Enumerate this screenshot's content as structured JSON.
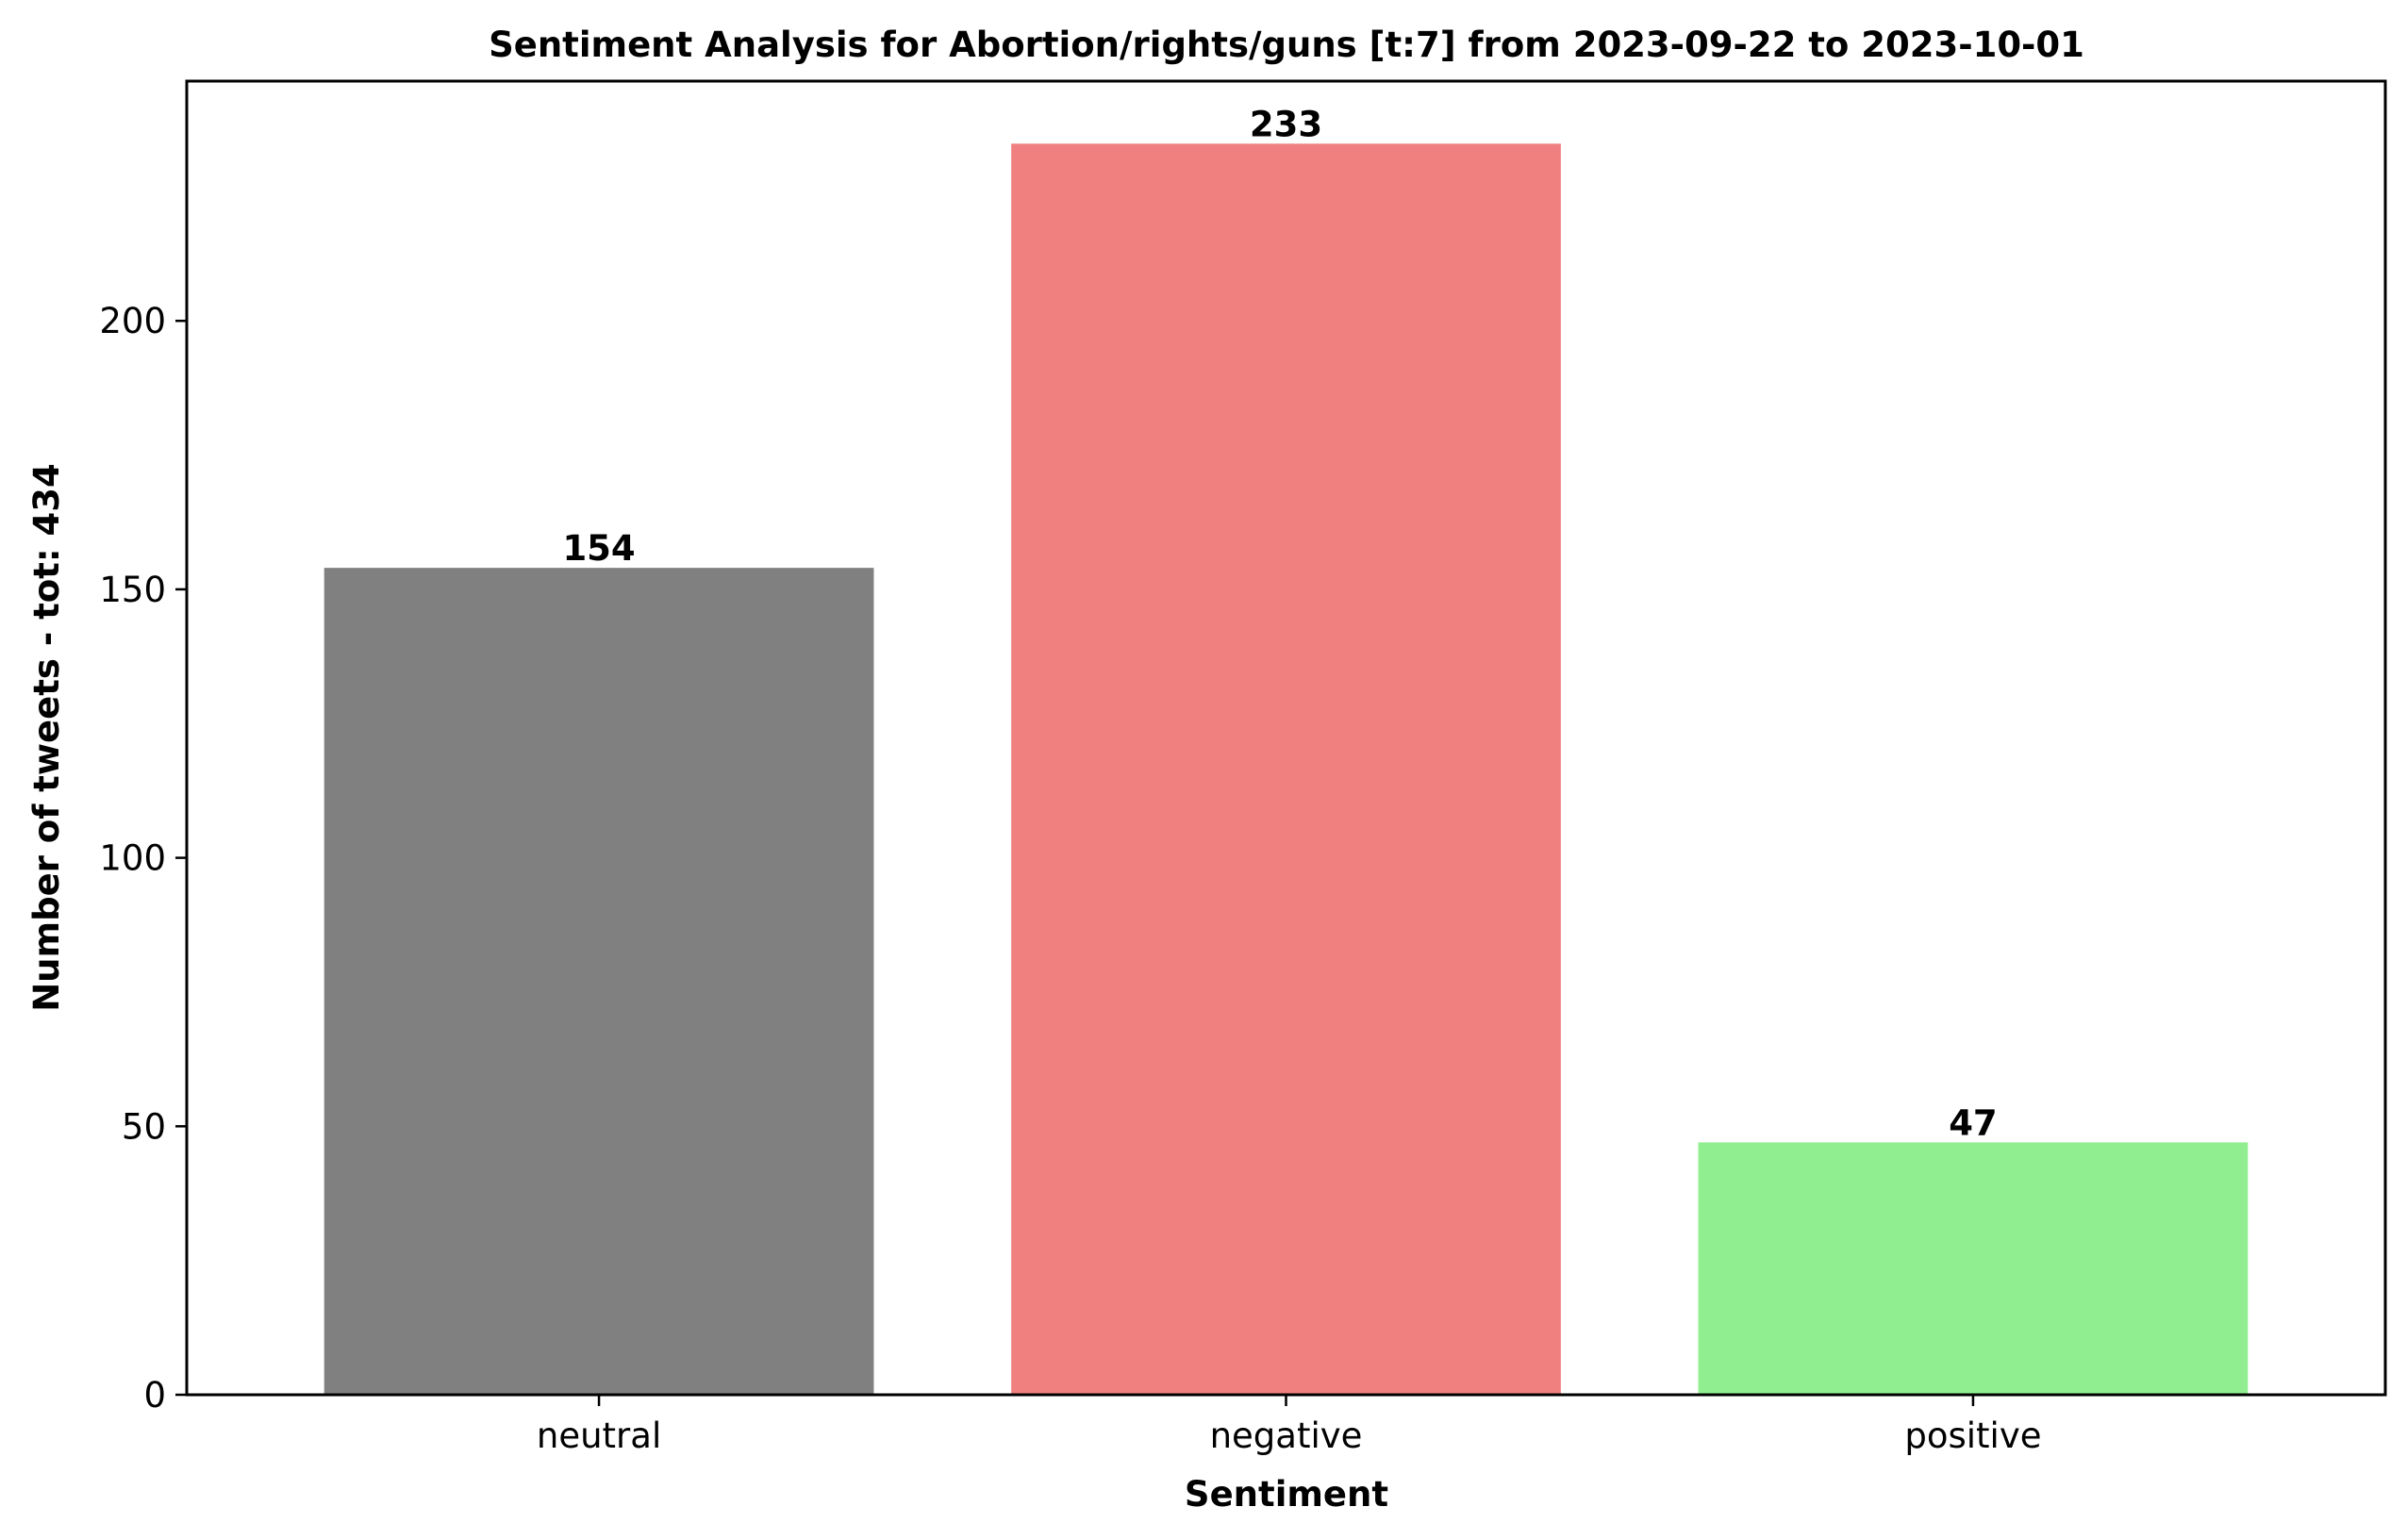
{
  "chart_data": {
    "type": "bar",
    "title": "Sentiment Analysis for Abortion/rights/guns [t:7] from 2023-09-22 to 2023-10-01",
    "xlabel": "Sentiment",
    "ylabel": "Number of tweets - tot: 434",
    "categories": [
      "neutral",
      "negative",
      "positive"
    ],
    "values": [
      154,
      233,
      47
    ],
    "colors": [
      "#808080",
      "#f08080",
      "#90ee90"
    ],
    "ylim": [
      0,
      244.65
    ],
    "yticks": [
      0,
      50,
      100,
      150,
      200
    ],
    "grid": false,
    "legend": "none"
  }
}
